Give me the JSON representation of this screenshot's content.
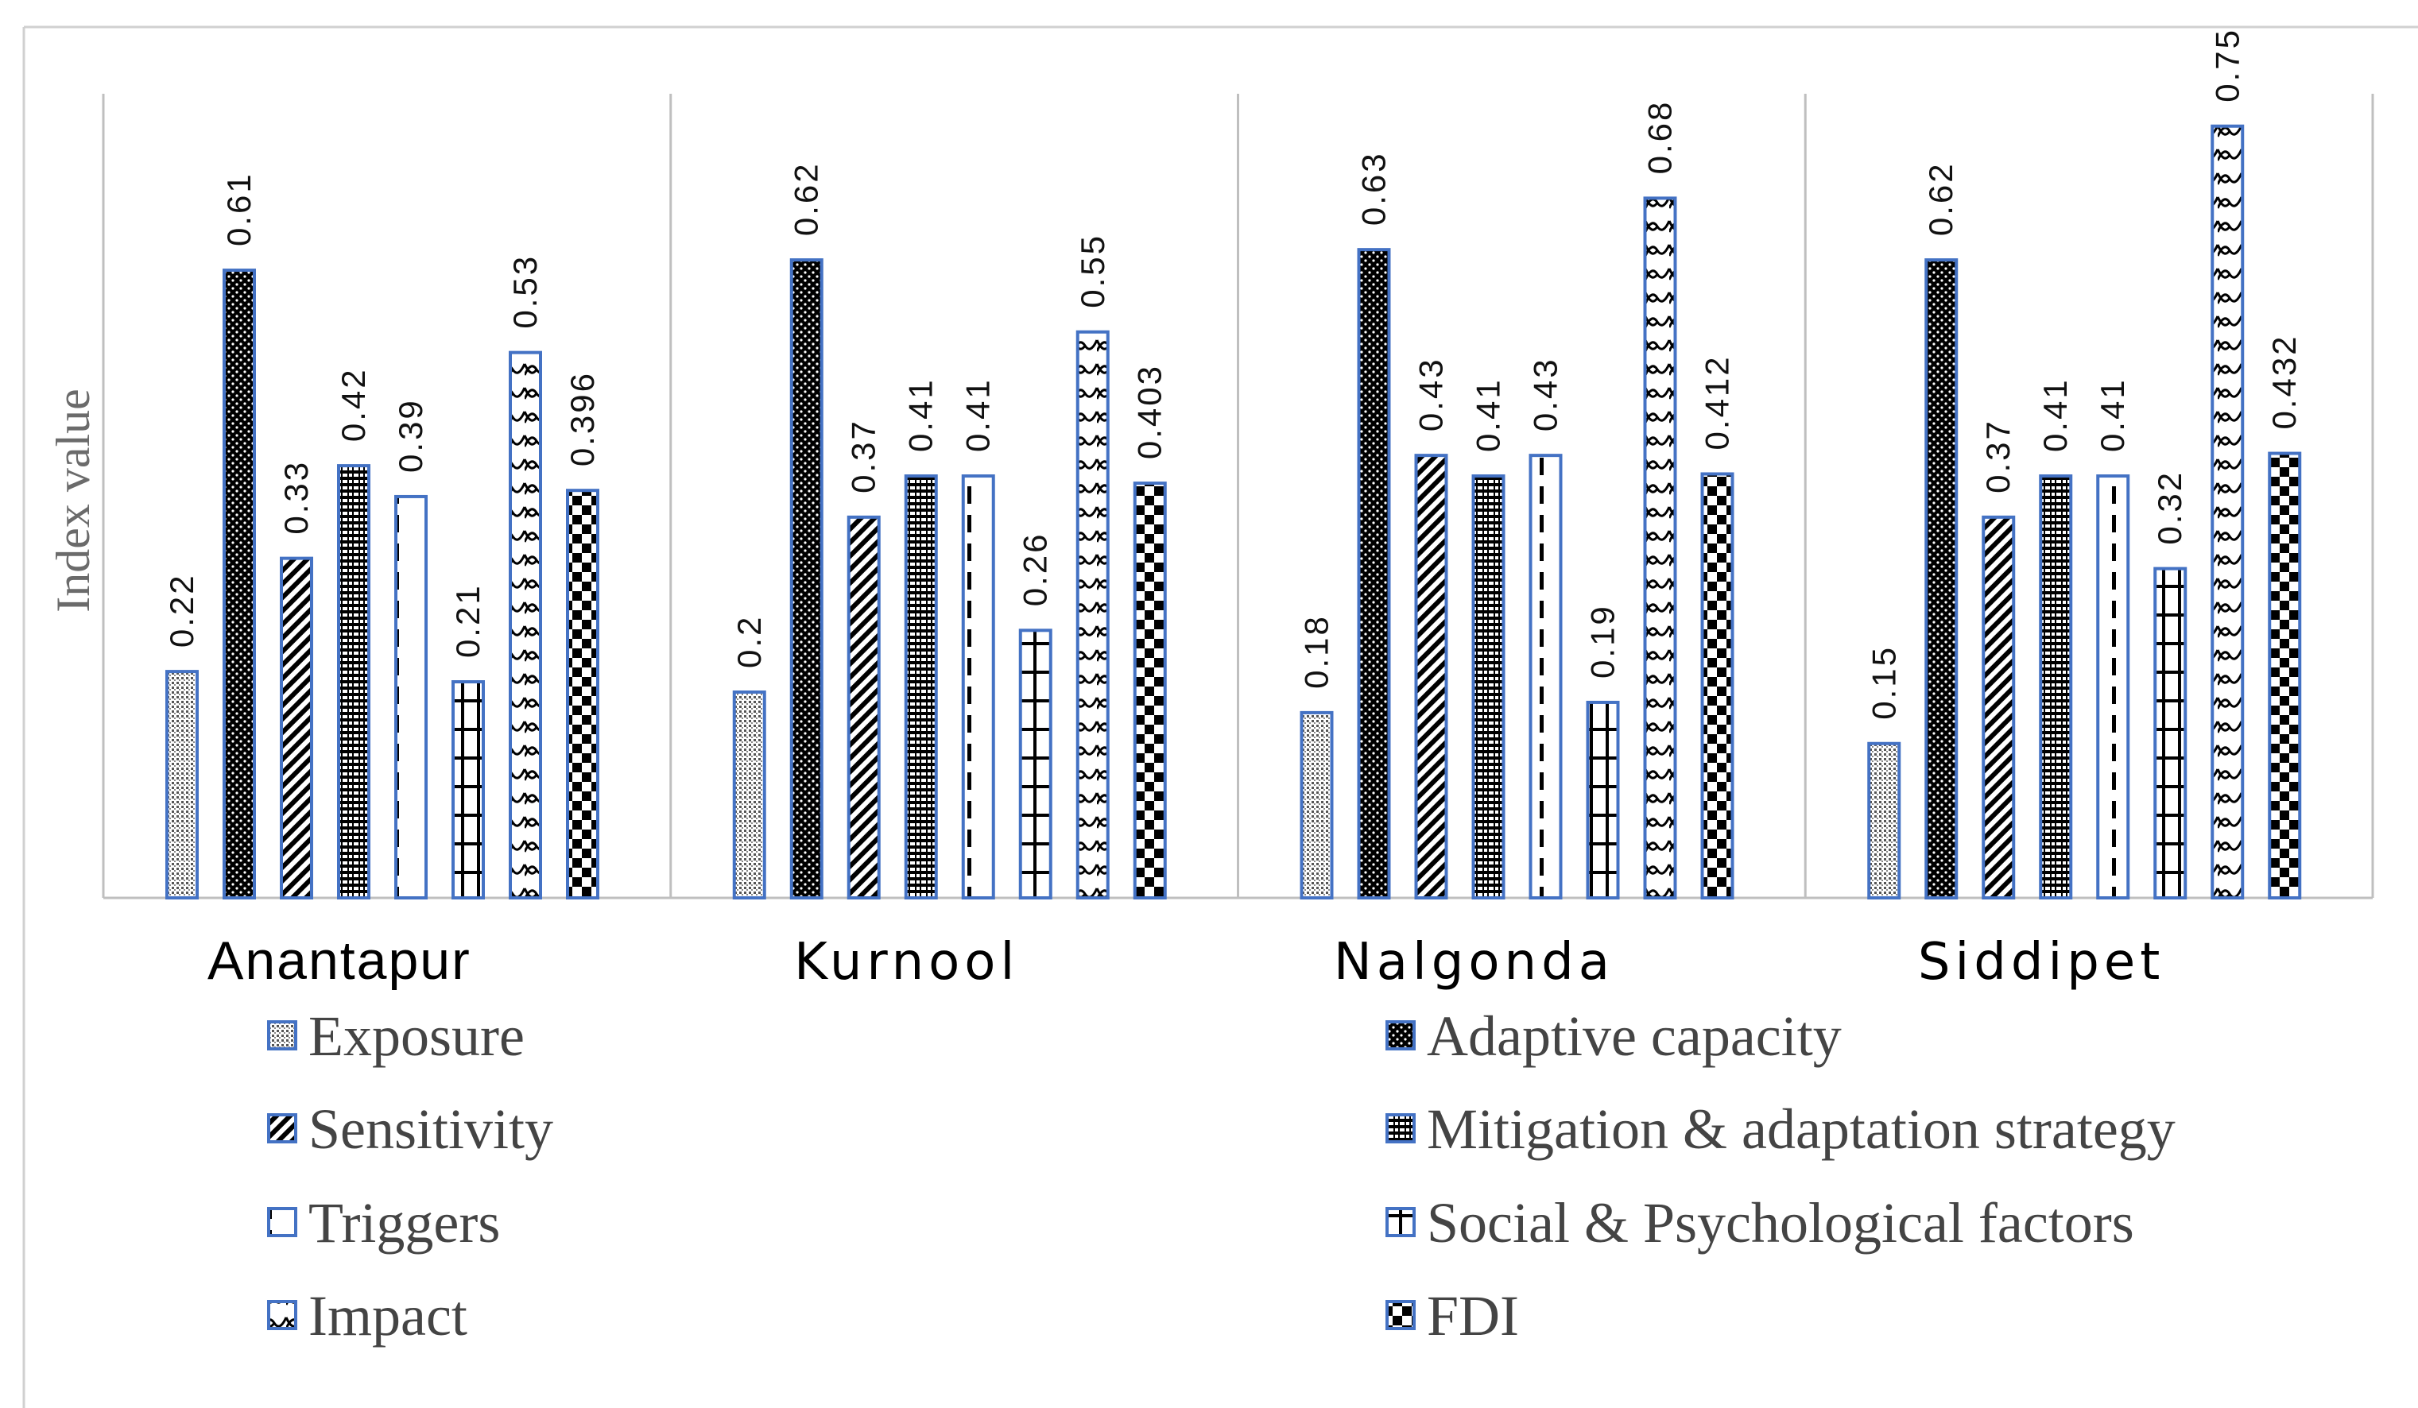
{
  "chart_data": {
    "type": "bar",
    "xlabel": "",
    "ylabel": "Index value",
    "ylim": [
      0,
      0.8
    ],
    "grid": false,
    "legend_position": "bottom",
    "categories": [
      "Anantapur",
      "Kurnool",
      "Nalgonda",
      "Siddipet"
    ],
    "series": [
      {
        "name": "Exposure",
        "pattern": "dots-fine",
        "values": [
          0.22,
          0.2,
          0.18,
          0.15
        ],
        "labels": [
          "0.22",
          "0.2",
          "0.18",
          "0.15"
        ]
      },
      {
        "name": "Adaptive capacity",
        "pattern": "dots-dark",
        "values": [
          0.61,
          0.62,
          0.63,
          0.62
        ],
        "labels": [
          "0.61",
          "0.62",
          "0.63",
          "0.62"
        ]
      },
      {
        "name": "Sensitivity",
        "pattern": "diagonal",
        "values": [
          0.33,
          0.37,
          0.43,
          0.37
        ],
        "labels": [
          "0.33",
          "0.37",
          "0.43",
          "0.37"
        ]
      },
      {
        "name": "Mitigation & adaptation strategy",
        "pattern": "vertical-lines",
        "values": [
          0.42,
          0.41,
          0.41,
          0.41
        ],
        "labels": [
          "0.42",
          "0.41",
          "0.41",
          "0.41"
        ]
      },
      {
        "name": "Triggers",
        "pattern": "dashed-vertical",
        "values": [
          0.39,
          0.41,
          0.43,
          0.41
        ],
        "labels": [
          "0.39",
          "0.41",
          "0.43",
          "0.41"
        ]
      },
      {
        "name": "Social & Psychological factors",
        "pattern": "h-grid",
        "values": [
          0.21,
          0.26,
          0.19,
          0.32
        ],
        "labels": [
          "0.21",
          "0.26",
          "0.19",
          "0.32"
        ]
      },
      {
        "name": "Impact",
        "pattern": "wave",
        "values": [
          0.53,
          0.55,
          0.68,
          0.75
        ],
        "labels": [
          "0.53",
          "0.55",
          "0.68",
          "0.75"
        ]
      },
      {
        "name": "FDI",
        "pattern": "checker",
        "values": [
          0.396,
          0.403,
          0.412,
          0.432
        ],
        "labels": [
          "0.396",
          "0.403",
          "0.412",
          "0.432"
        ]
      }
    ],
    "colors": {
      "bar_border": "#4472C4",
      "axis": "#bfbfbf",
      "ink": "#000000"
    }
  }
}
